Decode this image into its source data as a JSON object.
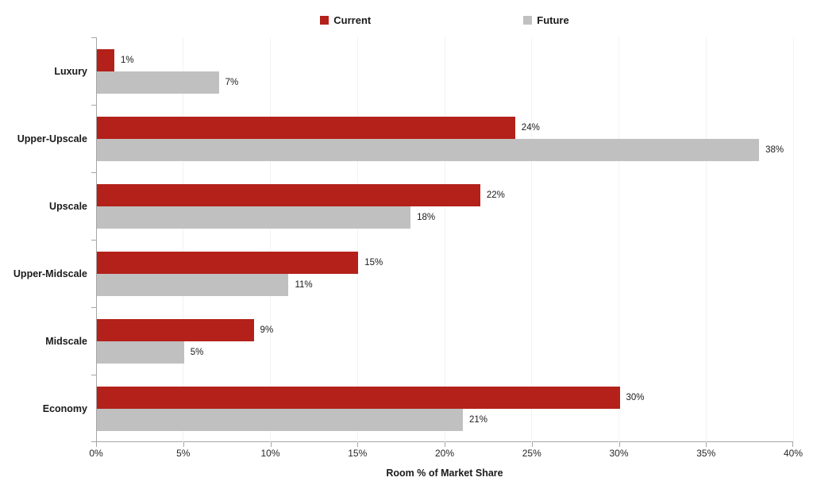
{
  "legend": {
    "items": [
      {
        "label": "Current",
        "color": "#b3211a"
      },
      {
        "label": "Future",
        "color": "#c0c0c0"
      }
    ]
  },
  "chart_data": {
    "type": "bar",
    "orientation": "horizontal",
    "title": "",
    "xlabel": "Room % of Market Share",
    "ylabel": "",
    "categories": [
      "Luxury",
      "Upper-Upscale",
      "Upscale",
      "Upper-Midscale",
      "Midscale",
      "Economy"
    ],
    "series": [
      {
        "name": "Current",
        "color": "#b3211a",
        "values": [
          1,
          24,
          22,
          15,
          9,
          30
        ]
      },
      {
        "name": "Future",
        "color": "#c0c0c0",
        "values": [
          7,
          38,
          18,
          11,
          5,
          21
        ]
      }
    ],
    "data_labels": {
      "Current": [
        "1%",
        "24%",
        "22%",
        "15%",
        "9%",
        "30%"
      ],
      "Future": [
        "7%",
        "38%",
        "18%",
        "11%",
        "5%",
        "21%"
      ]
    },
    "value_suffix": "%",
    "xlim": [
      0,
      40
    ],
    "x_ticks": [
      "0%",
      "5%",
      "10%",
      "15%",
      "20%",
      "25%",
      "30%",
      "35%",
      "40%"
    ],
    "x_tick_step": 5,
    "grid": true,
    "legend_position": "top-center"
  },
  "colors": {
    "axis_line": "#a6a6a6",
    "gridline": "#f2f2f2",
    "text": "#1a1a1a",
    "background": "#ffffff"
  }
}
